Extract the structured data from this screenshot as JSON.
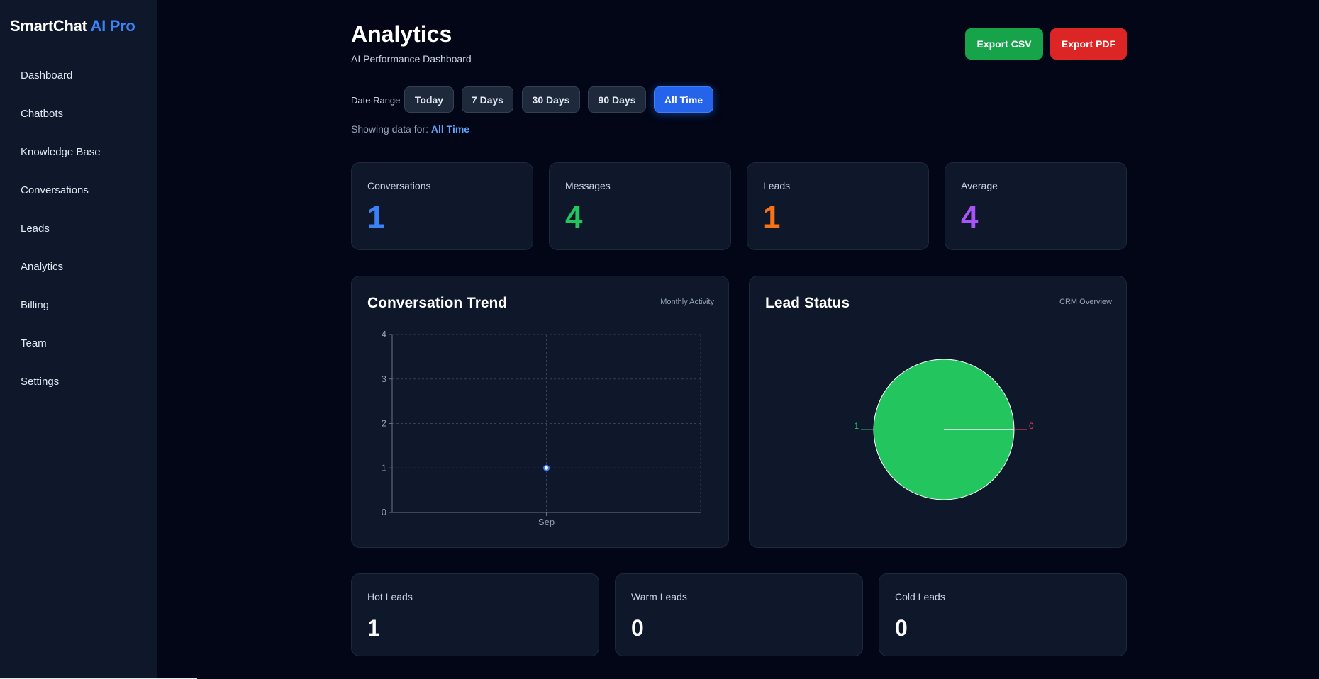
{
  "brand": {
    "name": "SmartChat",
    "accent": "AI Pro"
  },
  "sidebar": {
    "items": [
      {
        "label": "Dashboard"
      },
      {
        "label": "Chatbots"
      },
      {
        "label": "Knowledge Base"
      },
      {
        "label": "Conversations"
      },
      {
        "label": "Leads"
      },
      {
        "label": "Analytics"
      },
      {
        "label": "Billing"
      },
      {
        "label": "Team"
      },
      {
        "label": "Settings"
      }
    ]
  },
  "header": {
    "title": "Analytics",
    "subtitle": "AI Performance Dashboard",
    "export_csv": "Export CSV",
    "export_pdf": "Export PDF"
  },
  "date_range": {
    "label": "Date Range",
    "options": [
      "Today",
      "7 Days",
      "30 Days",
      "90 Days",
      "All Time"
    ],
    "selected": "All Time",
    "showing_prefix": "Showing data for:",
    "showing_value": "All Time"
  },
  "stats": [
    {
      "label": "Conversations",
      "value": "1",
      "color": "#3b82f6"
    },
    {
      "label": "Messages",
      "value": "4",
      "color": "#22c55e"
    },
    {
      "label": "Leads",
      "value": "1",
      "color": "#f97316"
    },
    {
      "label": "Average",
      "value": "4",
      "color": "#a855f7"
    }
  ],
  "trend_card": {
    "title": "Conversation Trend",
    "subtitle": "Monthly Activity"
  },
  "lead_card": {
    "title": "Lead Status",
    "subtitle": "CRM Overview"
  },
  "lead_summary": [
    {
      "label": "Hot Leads",
      "value": "1"
    },
    {
      "label": "Warm Leads",
      "value": "0"
    },
    {
      "label": "Cold Leads",
      "value": "0"
    }
  ],
  "chart_data": [
    {
      "type": "line",
      "title": "Conversation Trend",
      "categories": [
        "Sep"
      ],
      "series": [
        {
          "values": [
            1
          ],
          "color": "#3b82f6"
        }
      ],
      "y_ticks": [
        "0",
        "1",
        "2",
        "3",
        "4"
      ],
      "ylim": [
        0,
        4
      ],
      "grid": true
    },
    {
      "type": "pie",
      "title": "Lead Status",
      "slices": [
        {
          "value": 1,
          "label": "1",
          "color": "#22c55e"
        },
        {
          "value": 0,
          "label": "0",
          "color": "#f43f5e"
        }
      ]
    }
  ]
}
